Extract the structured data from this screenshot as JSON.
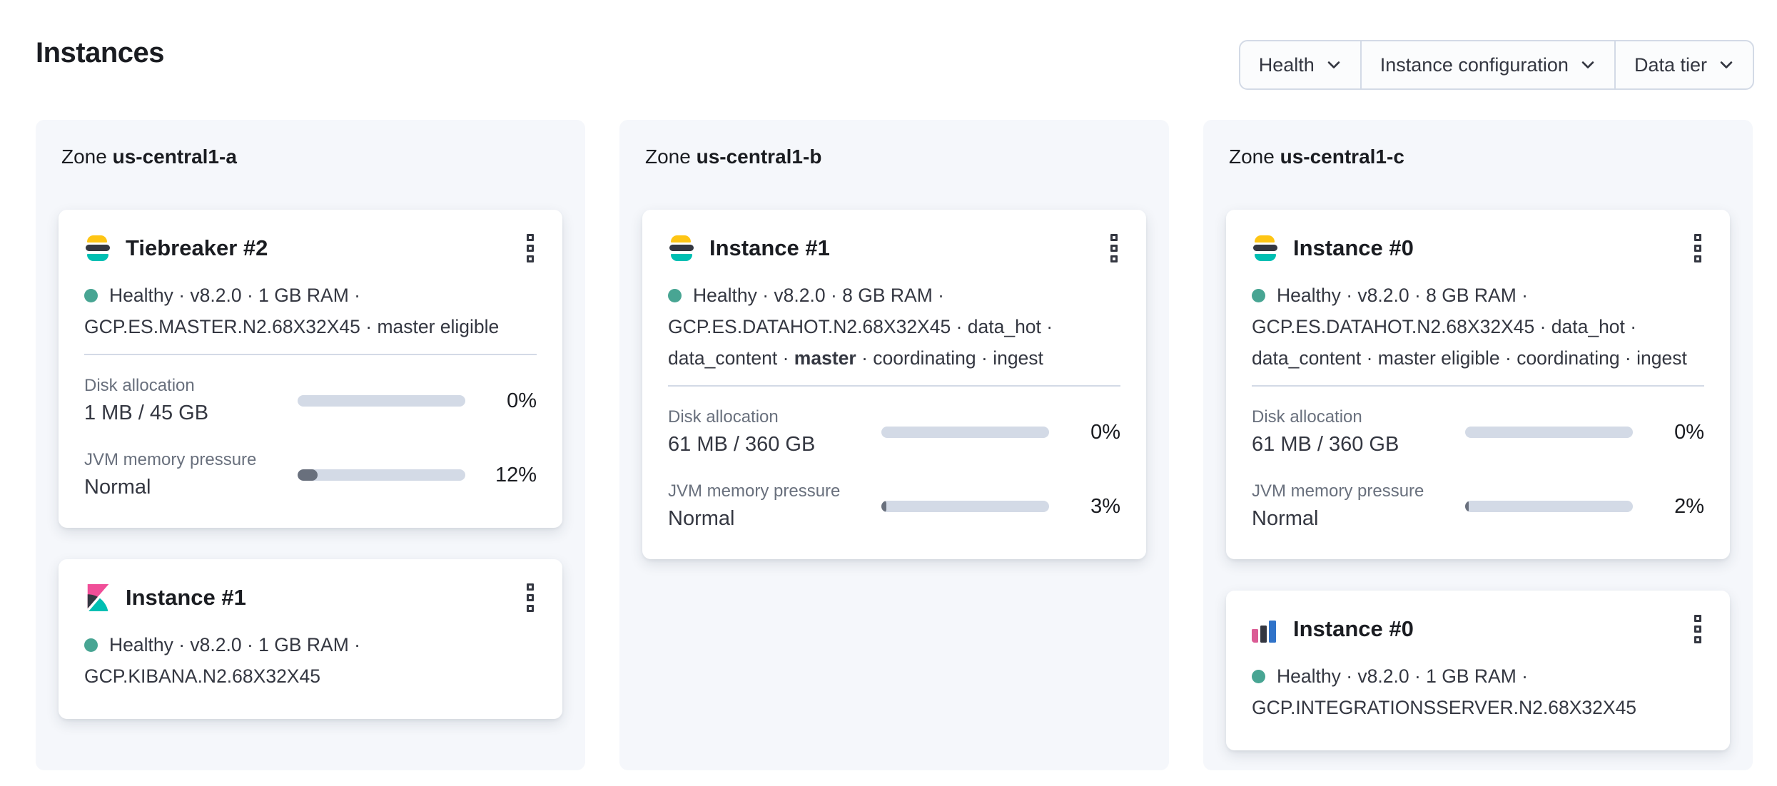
{
  "page": {
    "title": "Instances"
  },
  "filters": {
    "health": "Health",
    "instance_configuration": "Instance configuration",
    "data_tier": "Data tier"
  },
  "zones": [
    {
      "label": "Zone",
      "name": "us-central1-a",
      "cards": [
        {
          "title": "Tiebreaker #2",
          "logo": "elasticsearch",
          "health": "Healthy",
          "line1_rest": "· v8.2.0 · 1 GB RAM ·",
          "line2": "GCP.ES.MASTER.N2.68X32X45 · master eligible",
          "disk": {
            "label": "Disk allocation",
            "value": "1 MB / 45 GB",
            "percent": "0%",
            "fill_width": "0%"
          },
          "jvm": {
            "label": "JVM memory pressure",
            "value": "Normal",
            "percent": "12%",
            "fill_width": "12%"
          }
        },
        {
          "title": "Instance #1",
          "logo": "kibana",
          "health": "Healthy",
          "line1_rest": "· v8.2.0 · 1 GB RAM ·",
          "line2": "GCP.KIBANA.N2.68X32X45"
        }
      ]
    },
    {
      "label": "Zone",
      "name": "us-central1-b",
      "cards": [
        {
          "title": "Instance #1",
          "logo": "elasticsearch",
          "health": "Healthy",
          "line1_rest": "· v8.2.0 · 8 GB RAM ·",
          "line2": "GCP.ES.DATAHOT.N2.68X32X45 · data_hot ·",
          "line3_pre": "data_content · ",
          "line3_bold": "master",
          "line3_post": " · coordinating · ingest",
          "disk": {
            "label": "Disk allocation",
            "value": "61 MB / 360 GB",
            "percent": "0%",
            "fill_width": "0%"
          },
          "jvm": {
            "label": "JVM memory pressure",
            "value": "Normal",
            "percent": "3%",
            "fill_width": "3%"
          }
        }
      ]
    },
    {
      "label": "Zone",
      "name": "us-central1-c",
      "cards": [
        {
          "title": "Instance #0",
          "logo": "elasticsearch",
          "health": "Healthy",
          "line1_rest": "· v8.2.0 · 8 GB RAM ·",
          "line2": "GCP.ES.DATAHOT.N2.68X32X45 · data_hot ·",
          "line3_pre": "data_content · master eligible · coordinating · ingest",
          "disk": {
            "label": "Disk allocation",
            "value": "61 MB / 360 GB",
            "percent": "0%",
            "fill_width": "0%"
          },
          "jvm": {
            "label": "JVM memory pressure",
            "value": "Normal",
            "percent": "2%",
            "fill_width": "2%"
          }
        },
        {
          "title": "Instance #0",
          "logo": "integrations-server",
          "health": "Healthy",
          "line1_rest": "· v8.2.0 · 1 GB RAM ·",
          "line2": "GCP.INTEGRATIONSSERVER.N2.68X32X45"
        }
      ]
    }
  ],
  "colors": {
    "health_dot": "#48a593",
    "meter_track": "#d3dae6",
    "meter_fill": "#69707d",
    "panel_bg": "#f5f7fb",
    "es_yellow": "#fec514",
    "es_dark": "#343741",
    "es_teal": "#00bfb3",
    "kibana_pink": "#f04e98",
    "int_blue": "#3073c9"
  }
}
